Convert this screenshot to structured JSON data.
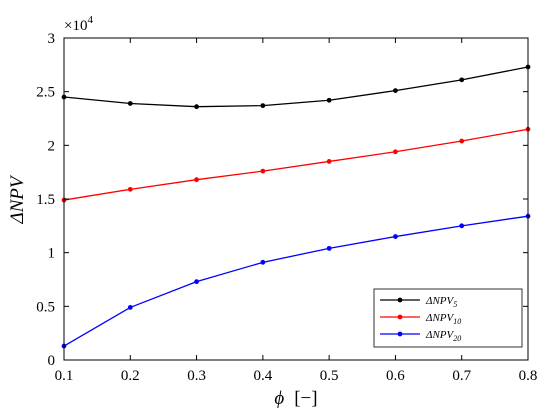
{
  "chart_data": {
    "type": "line",
    "x": [
      0.1,
      0.2,
      0.3,
      0.4,
      0.5,
      0.6,
      0.7,
      0.8
    ],
    "series": [
      {
        "name": "ΔNPV5",
        "label_main": "ΔNPV",
        "label_sub": "5",
        "color": "#000000",
        "values": [
          24500,
          23900,
          23600,
          23700,
          24200,
          25100,
          26100,
          27300
        ]
      },
      {
        "name": "ΔNPV10",
        "label_main": "ΔNPV",
        "label_sub": "10",
        "color": "#ff0000",
        "values": [
          14900,
          15900,
          16800,
          17600,
          18500,
          19400,
          20400,
          21500
        ]
      },
      {
        "name": "ΔNPV20",
        "label_main": "ΔNPV",
        "label_sub": "20",
        "color": "#0000ff",
        "values": [
          1300,
          4900,
          7300,
          9100,
          10400,
          11500,
          12500,
          13400
        ]
      }
    ],
    "xlabel_symbol": "ϕ",
    "xlabel_unit": "[−]",
    "ylabel": "ΔNPV",
    "y_multiplier": "×10",
    "y_exponent": "4",
    "xlim": [
      0.1,
      0.8
    ],
    "ylim": [
      0,
      30000
    ],
    "xticks": [
      "0.1",
      "0.2",
      "0.3",
      "0.4",
      "0.5",
      "0.6",
      "0.7",
      "0.8"
    ],
    "yticks": [
      "0",
      "0.5",
      "1",
      "1.5",
      "2",
      "2.5",
      "3"
    ],
    "grid": false,
    "legend_position": "bottom-right"
  }
}
